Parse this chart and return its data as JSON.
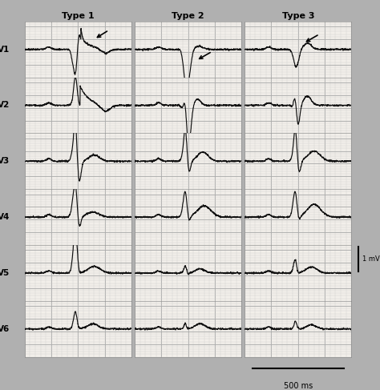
{
  "types": [
    "Type 1",
    "Type 2",
    "Type 3"
  ],
  "leads": [
    "V1",
    "V2",
    "V3",
    "V4",
    "V5",
    "V6"
  ],
  "bg_color": "#f0eeea",
  "grid_major_color": "#b0b0b0",
  "grid_minor_color": "#d8d8d8",
  "ecg_color": "#111111",
  "fig_bg": "#b8b8b8",
  "panel_bg": "#e8e6e0"
}
